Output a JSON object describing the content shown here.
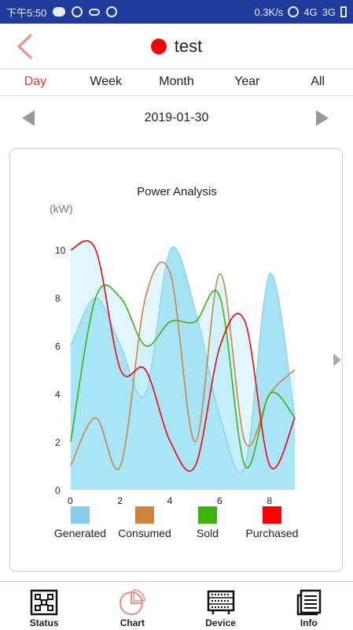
{
  "status_bar": {
    "time": "下午5:50",
    "net_speed": "0.3K/s",
    "network_1": "4G",
    "network_2": "3G"
  },
  "header": {
    "title": "test",
    "status_color": "#ff0000"
  },
  "tabs": [
    {
      "label": "Day",
      "active": true
    },
    {
      "label": "Week",
      "active": false
    },
    {
      "label": "Month",
      "active": false
    },
    {
      "label": "Year",
      "active": false
    },
    {
      "label": "All",
      "active": false
    }
  ],
  "date_nav": {
    "date": "2019-01-30"
  },
  "chart_data": {
    "type": "area",
    "title": "Power Analysis",
    "ylabel": "(kW)",
    "xlim": [
      0,
      9
    ],
    "ylim": [
      0,
      10
    ],
    "x_ticks": [
      0,
      2,
      4,
      6,
      8
    ],
    "y_ticks": [
      0,
      2,
      4,
      6,
      8,
      10
    ],
    "x": [
      0,
      1,
      2,
      3,
      4,
      5,
      6,
      7,
      8,
      9
    ],
    "series": [
      {
        "name": "Generated",
        "color": "#87ceeb",
        "values": [
          6,
          8,
          6,
          4,
          10,
          7.5,
          3,
          1,
          9,
          3
        ]
      },
      {
        "name": "Consumed",
        "color": "#cd853f",
        "values": [
          1,
          3,
          1,
          8,
          9,
          2,
          9,
          2,
          4,
          5
        ]
      },
      {
        "name": "Sold",
        "color": "#3cb30e",
        "values": [
          2,
          8,
          8,
          6,
          7,
          7,
          8,
          1,
          4,
          3
        ]
      },
      {
        "name": "Purchased",
        "color": "#ff0000",
        "values": [
          10,
          10,
          5,
          5,
          2,
          1,
          6,
          7,
          1,
          3
        ]
      }
    ]
  },
  "bottom_nav": [
    {
      "label": "Status",
      "icon": "status-icon"
    },
    {
      "label": "Chart",
      "icon": "pie-chart-icon"
    },
    {
      "label": "Device",
      "icon": "device-icon"
    },
    {
      "label": "Info",
      "icon": "info-icon"
    }
  ]
}
